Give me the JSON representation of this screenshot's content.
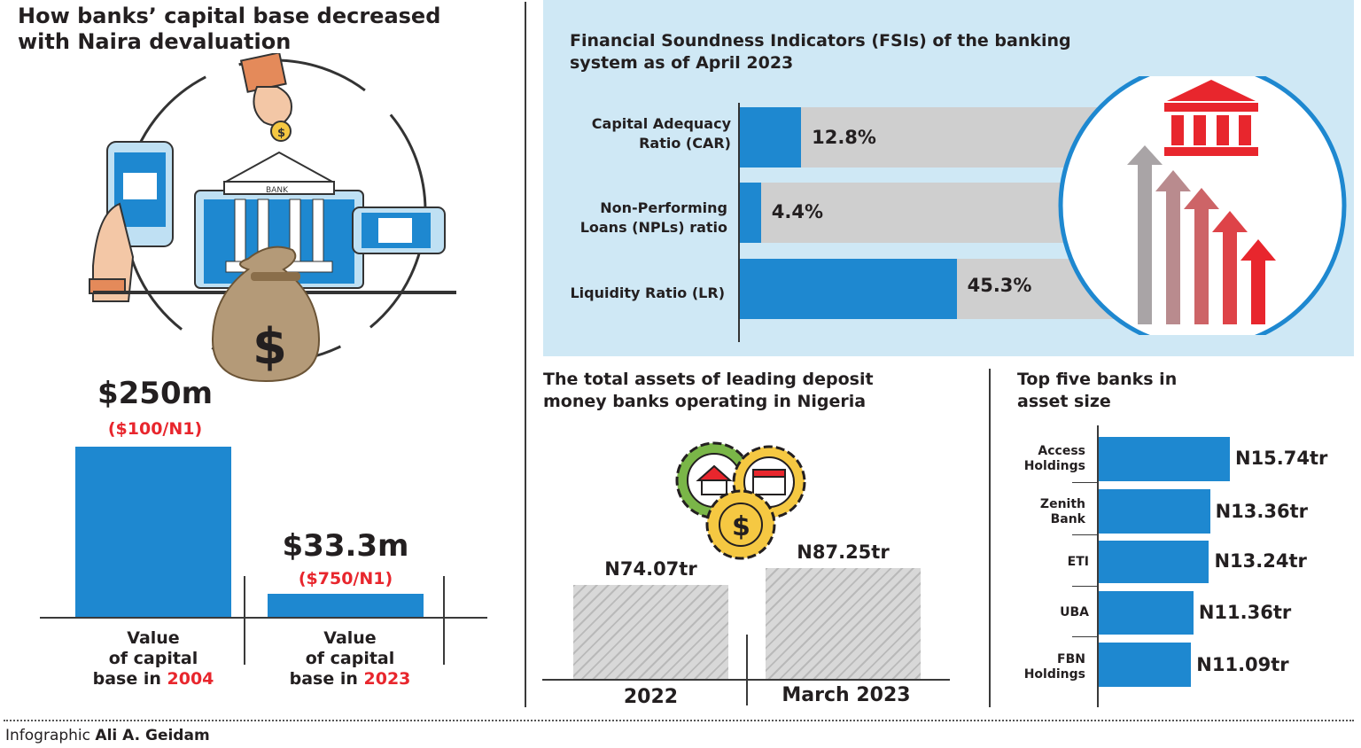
{
  "left": {
    "title_line1": "How banks’ capital base decreased",
    "title_line2": "with Naira devaluation",
    "bank_sign": "BANK"
  },
  "fsi": {
    "title_line1": "Financial Soundness Indicators (FSIs) of the banking",
    "title_line2": "system as of April 2023"
  },
  "assets": {
    "title_line1": "The total assets of leading deposit",
    "title_line2": "money banks operating in Nigeria"
  },
  "top5": {
    "title_line1": "Top five banks in",
    "title_line2": "asset size"
  },
  "footer": {
    "prefix": "Infographic",
    "author": "Ali A. Geidam"
  },
  "colors": {
    "bar_blue": "#1e88d0",
    "accent_red": "#e8262d",
    "panel_bg": "#cfe8f5",
    "track_grey": "#cfcfcf"
  },
  "chart_data": [
    {
      "type": "bar",
      "title": "How banks’ capital base decreased with Naira devaluation",
      "categories": [
        "Value of capital base in 2004",
        "Value of capital base in 2023"
      ],
      "values": [
        250,
        33.3
      ],
      "value_labels": [
        "$250m",
        "$33.3m"
      ],
      "rate_labels": [
        "($100/N1)",
        "($750/N1)"
      ],
      "category_lines": [
        [
          "Value",
          "of capital",
          "base in ",
          "2004"
        ],
        [
          "Value",
          "of capital",
          "base in ",
          "2023"
        ]
      ]
    },
    {
      "type": "bar",
      "orientation": "horizontal",
      "title": "Financial Soundness Indicators (FSIs) of the banking system as of April 2023",
      "categories": [
        "Capital Adequacy Ratio (CAR)",
        "Non-Performing Loans (NPLs) ratio",
        "Liquidity Ratio (LR)"
      ],
      "category_lines": [
        [
          "Capital Adequacy",
          "Ratio (CAR)"
        ],
        [
          "Non-Performing",
          "Loans (NPLs) ratio"
        ],
        [
          "Liquidity Ratio (LR)"
        ]
      ],
      "values": [
        12.8,
        4.4,
        45.3
      ],
      "value_labels": [
        "12.8%",
        "4.4%",
        "45.3%"
      ]
    },
    {
      "type": "bar",
      "title": "The total assets of leading deposit money banks operating in Nigeria",
      "categories": [
        "2022",
        "March 2023"
      ],
      "values": [
        74.07,
        87.25
      ],
      "value_labels": [
        "N74.07tr",
        "N87.25tr"
      ]
    },
    {
      "type": "bar",
      "orientation": "horizontal",
      "title": "Top five banks in asset size",
      "categories": [
        "Access Holdings",
        "Zenith Bank",
        "ETI",
        "UBA",
        "FBN Holdings"
      ],
      "category_lines": [
        [
          "Access",
          "Holdings"
        ],
        [
          "Zenith",
          "Bank"
        ],
        [
          "ETI"
        ],
        [
          "UBA"
        ],
        [
          "FBN",
          "Holdings"
        ]
      ],
      "values": [
        15.74,
        13.36,
        13.24,
        11.36,
        11.09
      ],
      "value_labels": [
        "N15.74tr",
        "N13.36tr",
        "N13.24tr",
        "N11.36tr",
        "N11.09tr"
      ]
    }
  ]
}
